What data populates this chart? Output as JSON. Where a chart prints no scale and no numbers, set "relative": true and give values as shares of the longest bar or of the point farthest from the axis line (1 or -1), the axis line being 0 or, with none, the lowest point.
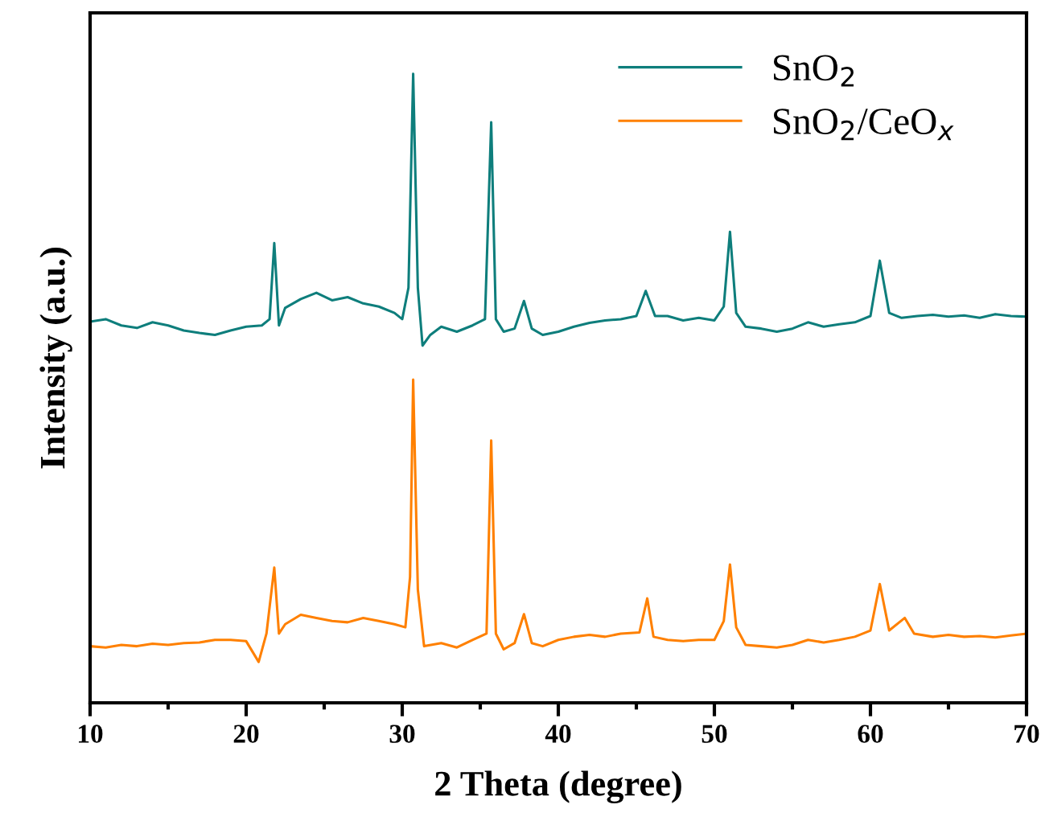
{
  "chart_data": {
    "type": "line",
    "xlabel": "2 Theta (degree)",
    "ylabel": "Intensity (a.u.)",
    "relative": true,
    "legend": "top right",
    "grid": false,
    "xlim": [
      10,
      70
    ],
    "xticks": [
      10,
      {
        "value": 15,
        "label": null
      },
      20,
      {
        "value": 25,
        "label": null
      },
      30,
      {
        "value": 35,
        "label": null
      },
      40,
      {
        "value": 45,
        "label": null
      },
      50,
      {
        "value": 55,
        "label": null
      },
      60,
      {
        "value": 65,
        "label": null
      },
      70
    ],
    "series": [
      {
        "name": "SnO$_{2}$",
        "color": "#0e7e7c",
        "x": [
          10,
          11,
          12,
          13,
          14,
          15,
          16,
          17,
          18,
          19,
          20,
          21,
          21.5,
          21.8,
          22.1,
          22.5,
          23.5,
          24.5,
          25.5,
          26.5,
          27.5,
          28.5,
          29.5,
          30.0,
          30.4,
          30.7,
          31.0,
          31.3,
          31.8,
          32.5,
          33.5,
          34.5,
          35.3,
          35.7,
          36.0,
          36.5,
          37.2,
          37.8,
          38.3,
          39,
          40,
          41,
          42,
          43,
          44,
          45,
          45.6,
          46.2,
          47,
          48,
          49,
          50,
          50.6,
          51.0,
          51.4,
          52,
          53,
          54,
          55,
          56,
          57,
          58,
          59,
          60.0,
          60.6,
          61.2,
          62,
          63,
          64,
          65,
          66,
          67,
          68,
          69,
          70
        ],
        "values": [
          0.606,
          0.61,
          0.6,
          0.596,
          0.605,
          0.6,
          0.592,
          0.588,
          0.585,
          0.592,
          0.598,
          0.6,
          0.61,
          0.731,
          0.6,
          0.628,
          0.642,
          0.652,
          0.64,
          0.645,
          0.635,
          0.63,
          0.62,
          0.61,
          0.66,
          1.0,
          0.66,
          0.568,
          0.585,
          0.598,
          0.59,
          0.6,
          0.61,
          0.923,
          0.61,
          0.59,
          0.595,
          0.639,
          0.595,
          0.585,
          0.59,
          0.598,
          0.604,
          0.608,
          0.61,
          0.615,
          0.655,
          0.615,
          0.615,
          0.608,
          0.612,
          0.608,
          0.63,
          0.749,
          0.62,
          0.598,
          0.595,
          0.59,
          0.595,
          0.605,
          0.598,
          0.602,
          0.605,
          0.615,
          0.703,
          0.62,
          0.612,
          0.615,
          0.617,
          0.614,
          0.616,
          0.612,
          0.618,
          0.615,
          0.614
        ]
      },
      {
        "name": "SnO$_{2}$/CeO$_{x}$",
        "color": "#ff8000",
        "x": [
          10,
          11,
          12,
          13,
          14,
          15,
          16,
          17,
          18,
          19,
          20,
          20.8,
          21.3,
          21.8,
          22.1,
          22.5,
          23.5,
          24.5,
          25.5,
          26.5,
          27.5,
          28.5,
          29.5,
          30.2,
          30.5,
          30.7,
          31.0,
          31.4,
          32.5,
          33.5,
          34.5,
          35.4,
          35.7,
          36.0,
          36.5,
          37.2,
          37.8,
          38.3,
          39,
          40,
          41,
          42,
          43,
          44,
          45.2,
          45.7,
          46.1,
          47,
          48,
          49,
          50,
          50.6,
          51.0,
          51.4,
          52,
          53,
          54,
          55,
          56,
          57,
          58,
          59,
          60.0,
          60.6,
          61.2,
          62.2,
          62.8,
          64,
          65,
          66,
          67,
          68,
          69,
          70
        ],
        "values": [
          0.09,
          0.088,
          0.092,
          0.09,
          0.094,
          0.092,
          0.095,
          0.096,
          0.1,
          0.1,
          0.098,
          0.065,
          0.11,
          0.215,
          0.11,
          0.125,
          0.14,
          0.135,
          0.13,
          0.128,
          0.135,
          0.13,
          0.125,
          0.12,
          0.2,
          0.514,
          0.18,
          0.09,
          0.095,
          0.088,
          0.1,
          0.11,
          0.417,
          0.11,
          0.085,
          0.095,
          0.141,
          0.095,
          0.09,
          0.1,
          0.105,
          0.108,
          0.105,
          0.11,
          0.112,
          0.166,
          0.105,
          0.1,
          0.098,
          0.1,
          0.1,
          0.13,
          0.22,
          0.12,
          0.092,
          0.09,
          0.088,
          0.092,
          0.1,
          0.096,
          0.1,
          0.105,
          0.115,
          0.189,
          0.115,
          0.135,
          0.11,
          0.105,
          0.108,
          0.105,
          0.106,
          0.104,
          0.107,
          0.11
        ]
      }
    ]
  }
}
